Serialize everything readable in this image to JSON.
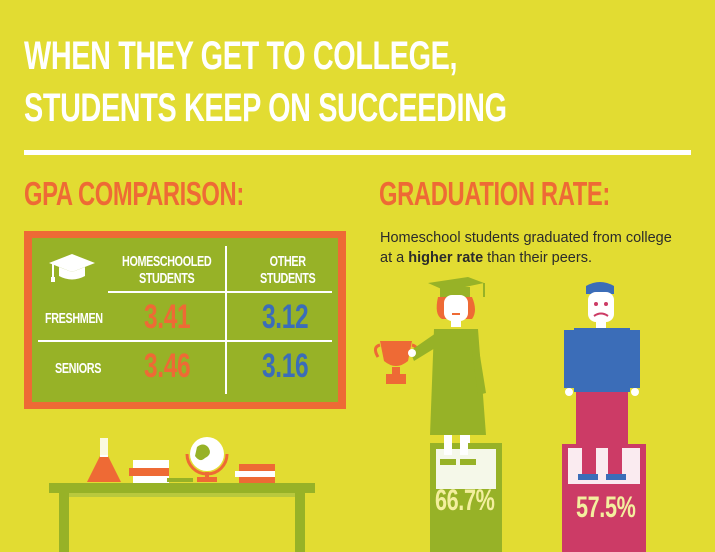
{
  "headline": {
    "line1": "WHEN THEY GET TO COLLEGE,",
    "line2": "STUDENTS KEEP ON SUCCEEDING"
  },
  "gpa": {
    "heading": "GPA COMPARISON:",
    "col_home_line1": "HOMESCHOOLED",
    "col_home_line2": "STUDENTS",
    "col_other_line1": "OTHER",
    "col_other_line2": "STUDENTS",
    "rows": [
      {
        "label": "FRESHMEN",
        "home": "3.41",
        "other": "3.12"
      },
      {
        "label": "SENIORS",
        "home": "3.46",
        "other": "3.16"
      }
    ]
  },
  "graduation": {
    "heading": "GRADUATION RATE:",
    "text_before": "Homeschool students graduated from college at a ",
    "text_bold": "higher rate",
    "text_after": " than their peers.",
    "home_rate": "66.7%",
    "other_rate": "57.5%"
  },
  "colors": {
    "background": "#e2dc32",
    "accent_orange": "#ee6a35",
    "board_green": "#97b227",
    "other_blue": "#3b6db8",
    "other_pink": "#cc3b66"
  }
}
